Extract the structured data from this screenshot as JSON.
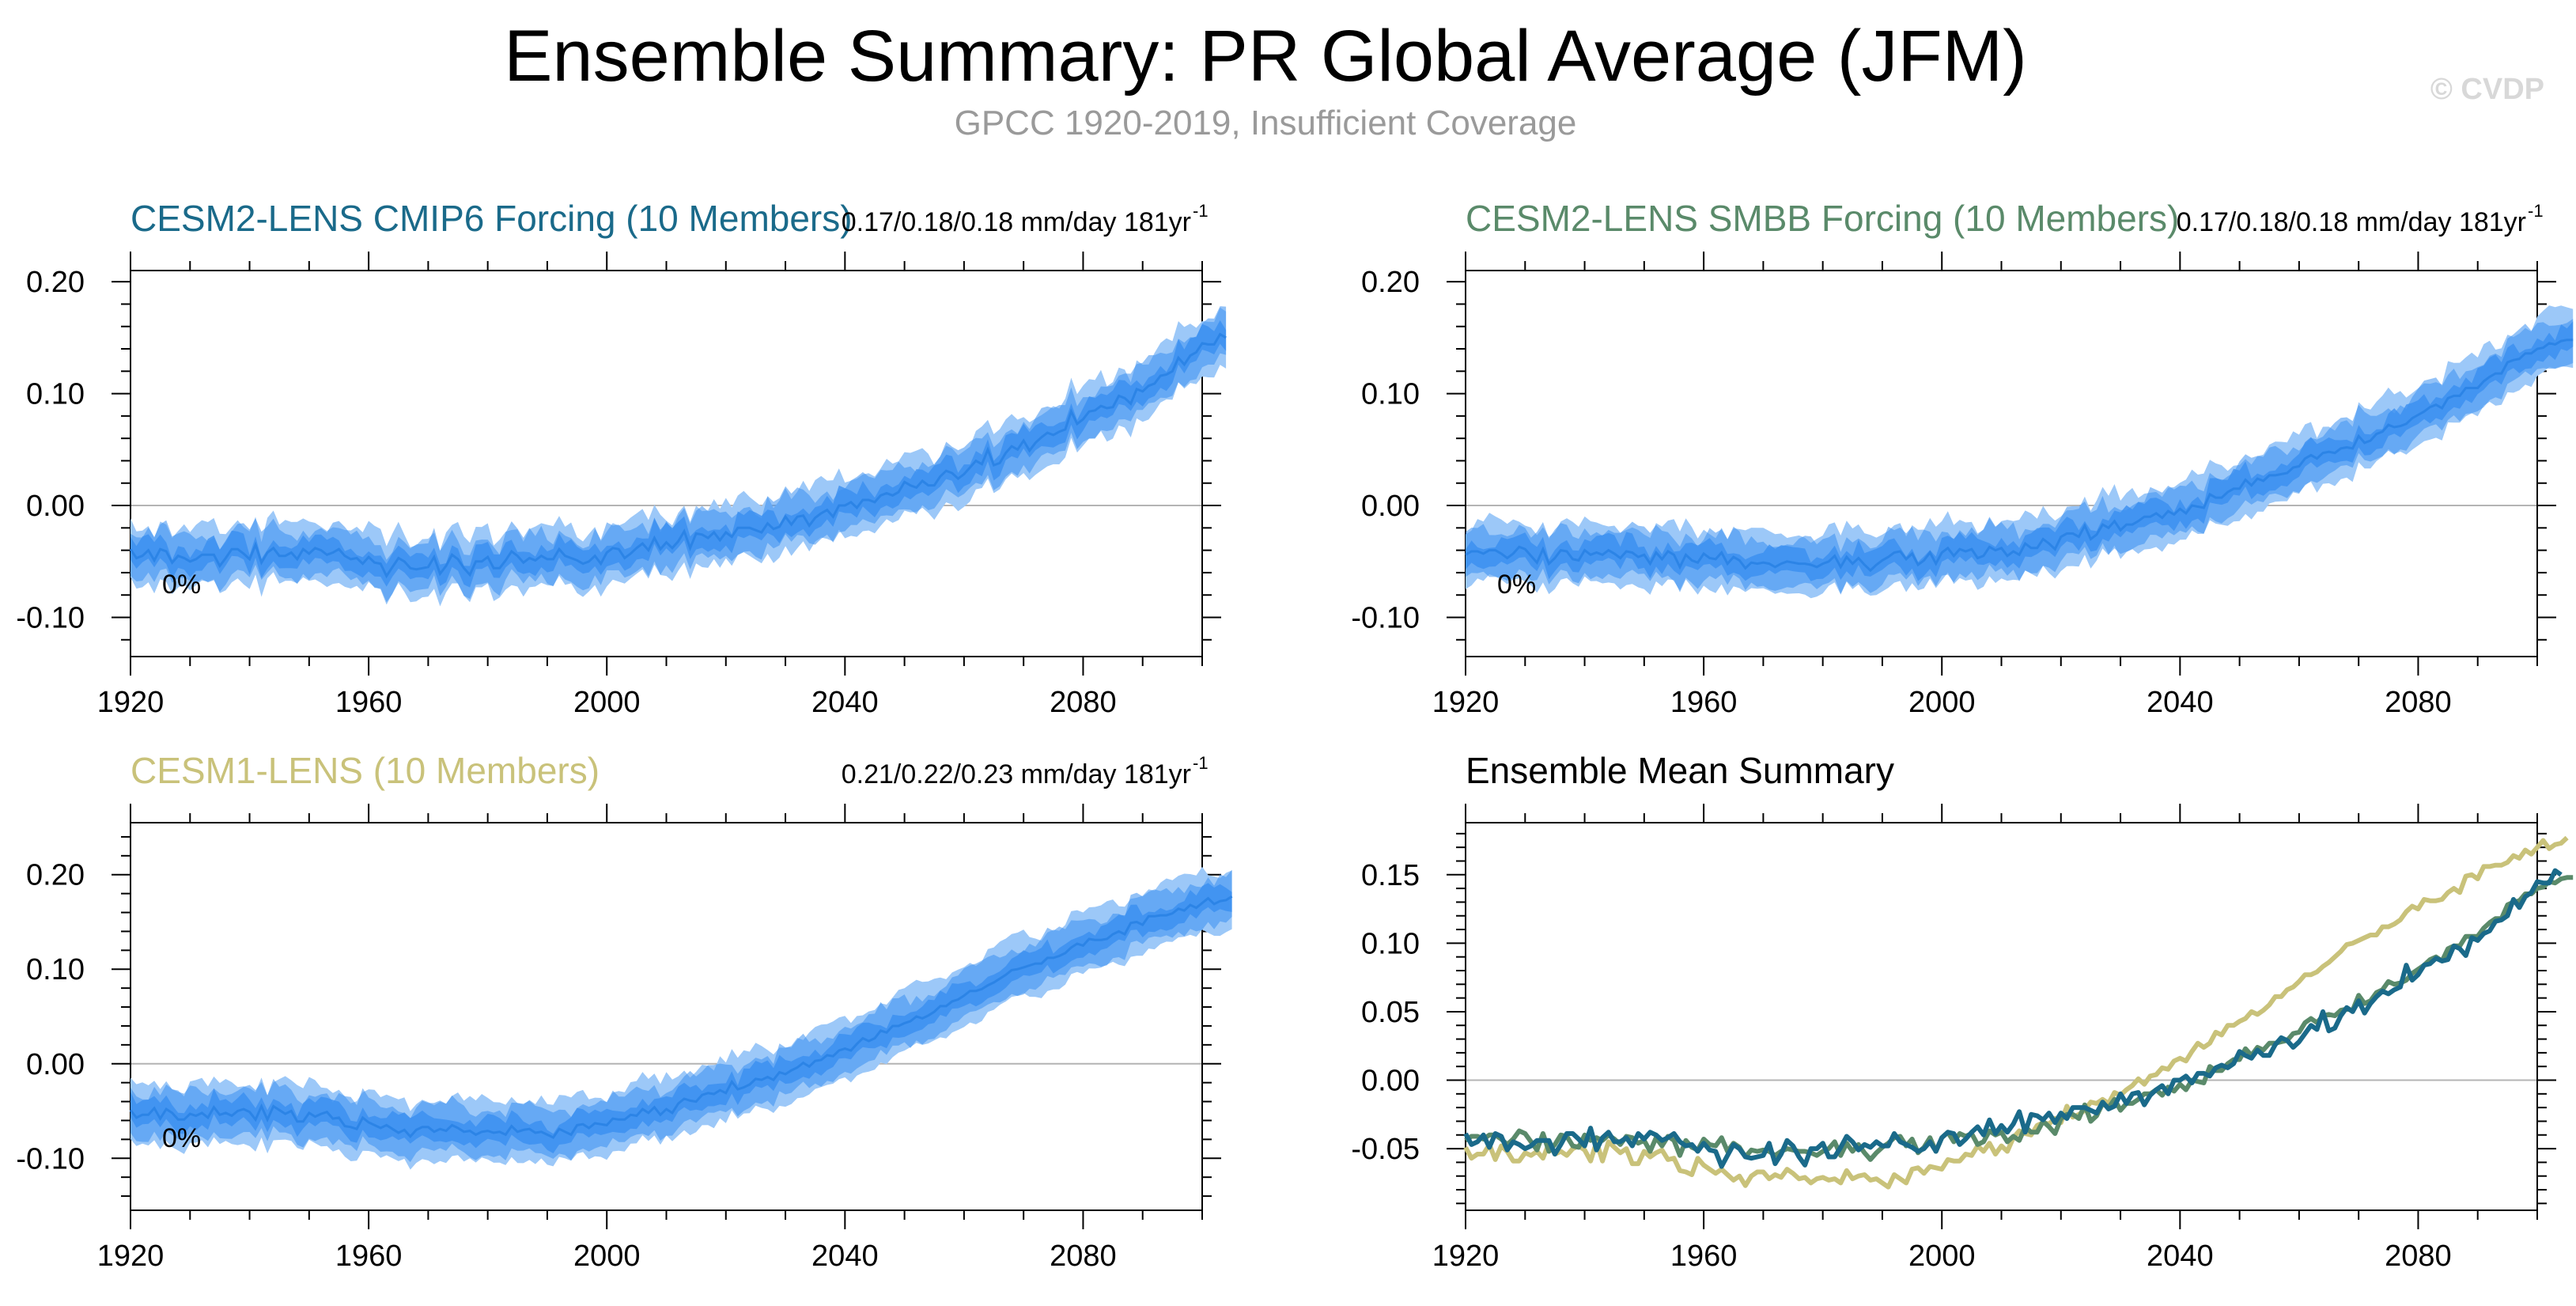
{
  "header": {
    "title": "Ensemble Summary: PR Global Average (JFM)",
    "subtitle": "GPCC 1920-2019, Insufficient Coverage",
    "watermark": "© CVDP"
  },
  "colors": {
    "cesm2_cmip6": "#1a6a8a",
    "cesm2_smbb": "#5a8a6a",
    "cesm1": "#c9c27a",
    "ensemble_mean_line": "#2c84e6",
    "inner_band": "#3a8ff0",
    "outer_band": "#9cc8f8",
    "zero_line": "#b4b4b4"
  },
  "chart_data": [
    {
      "type": "area",
      "title": "CESM2-LENS CMIP6 Forcing (10 Members)",
      "title_color": "#1a6a8a",
      "trend_label": "0.17/0.18/0.18 mm/day 181yr",
      "trend_exponent": "-1",
      "percent_label": "0%",
      "xlim": [
        1920,
        2100
      ],
      "ylim": [
        -0.135,
        0.21
      ],
      "xticks": [
        1920,
        1960,
        2000,
        2040,
        2080
      ],
      "xtick_labels": [
        "1920",
        "1960",
        "2000",
        "2040",
        "2080"
      ],
      "yticks": [
        0.2,
        0.1,
        0.0,
        -0.1
      ],
      "ytick_labels": [
        "0.20",
        "0.10",
        "0.00",
        "-0.10"
      ],
      "series": [
        {
          "name": "ensemble mean",
          "x_start": 1920,
          "x_step": 1,
          "values": [
            -0.039,
            -0.047,
            -0.045,
            -0.04,
            -0.049,
            -0.039,
            -0.041,
            -0.051,
            -0.045,
            -0.047,
            -0.05,
            -0.048,
            -0.044,
            -0.044,
            -0.044,
            -0.054,
            -0.047,
            -0.039,
            -0.039,
            -0.043,
            -0.048,
            -0.035,
            -0.051,
            -0.042,
            -0.038,
            -0.045,
            -0.045,
            -0.042,
            -0.048,
            -0.039,
            -0.043,
            -0.038,
            -0.04,
            -0.044,
            -0.042,
            -0.039,
            -0.045,
            -0.048,
            -0.047,
            -0.052,
            -0.046,
            -0.051,
            -0.052,
            -0.063,
            -0.055,
            -0.047,
            -0.05,
            -0.056,
            -0.057,
            -0.056,
            -0.055,
            -0.046,
            -0.061,
            -0.054,
            -0.044,
            -0.048,
            -0.056,
            -0.062,
            -0.05,
            -0.05,
            -0.046,
            -0.056,
            -0.056,
            -0.049,
            -0.041,
            -0.045,
            -0.051,
            -0.047,
            -0.049,
            -0.045,
            -0.048,
            -0.048,
            -0.039,
            -0.045,
            -0.047,
            -0.049,
            -0.052,
            -0.05,
            -0.045,
            -0.052,
            -0.042,
            -0.038,
            -0.039,
            -0.047,
            -0.043,
            -0.038,
            -0.034,
            -0.04,
            -0.029,
            -0.039,
            -0.033,
            -0.038,
            -0.032,
            -0.023,
            -0.038,
            -0.025,
            -0.026,
            -0.029,
            -0.024,
            -0.031,
            -0.024,
            -0.028,
            -0.02,
            -0.02,
            -0.02,
            -0.022,
            -0.024,
            -0.016,
            -0.021,
            -0.019,
            -0.01,
            -0.017,
            -0.01,
            -0.009,
            -0.018,
            -0.011,
            -0.007,
            -0.004,
            -0.01,
            0.0,
            0.0,
            0.003,
            -0.002,
            0.005,
            0.005,
            0.003,
            0.009,
            0.011,
            0.009,
            0.012,
            0.021,
            0.018,
            0.016,
            0.022,
            0.018,
            0.018,
            0.026,
            0.031,
            0.029,
            0.024,
            0.028,
            0.034,
            0.04,
            0.037,
            0.05,
            0.036,
            0.038,
            0.047,
            0.053,
            0.05,
            0.058,
            0.049,
            0.056,
            0.061,
            0.065,
            0.063,
            0.066,
            0.068,
            0.084,
            0.073,
            0.077,
            0.084,
            0.085,
            0.089,
            0.087,
            0.088,
            0.098,
            0.096,
            0.091,
            0.104,
            0.102,
            0.107,
            0.109,
            0.116,
            0.117,
            0.12,
            0.132,
            0.126,
            0.134,
            0.137,
            0.145,
            0.144,
            0.144,
            0.153,
            0.15
          ]
        },
        {
          "name": "ensemble spread half-width",
          "values": [
            0.01,
            0.02,
            0.026
          ]
        }
      ]
    },
    {
      "type": "area",
      "title": "CESM2-LENS SMBB Forcing (10 Members)",
      "title_color": "#5a8a6a",
      "trend_label": "0.17/0.18/0.18 mm/day 181yr",
      "trend_exponent": "-1",
      "percent_label": "0%",
      "xlim": [
        1920,
        2100
      ],
      "ylim": [
        -0.135,
        0.21
      ],
      "xticks": [
        1920,
        1960,
        2000,
        2040,
        2080
      ],
      "xtick_labels": [
        "1920",
        "1960",
        "2000",
        "2040",
        "2080"
      ],
      "yticks": [
        0.2,
        0.1,
        0.0,
        -0.1
      ],
      "ytick_labels": [
        "0.20",
        "0.10",
        "0.00",
        "-0.10"
      ],
      "series": [
        {
          "name": "ensemble mean",
          "x_start": 1920,
          "x_step": 1,
          "values": [
            -0.044,
            -0.041,
            -0.041,
            -0.043,
            -0.04,
            -0.04,
            -0.043,
            -0.047,
            -0.043,
            -0.037,
            -0.039,
            -0.045,
            -0.051,
            -0.039,
            -0.052,
            -0.047,
            -0.04,
            -0.041,
            -0.048,
            -0.049,
            -0.04,
            -0.044,
            -0.042,
            -0.044,
            -0.04,
            -0.043,
            -0.047,
            -0.041,
            -0.042,
            -0.046,
            -0.044,
            -0.052,
            -0.042,
            -0.048,
            -0.041,
            -0.044,
            -0.055,
            -0.044,
            -0.049,
            -0.051,
            -0.043,
            -0.047,
            -0.048,
            -0.042,
            -0.052,
            -0.046,
            -0.049,
            -0.056,
            -0.051,
            -0.052,
            -0.051,
            -0.052,
            -0.055,
            -0.052,
            -0.05,
            -0.051,
            -0.052,
            -0.052,
            -0.053,
            -0.055,
            -0.052,
            -0.05,
            -0.045,
            -0.055,
            -0.046,
            -0.052,
            -0.047,
            -0.053,
            -0.058,
            -0.053,
            -0.049,
            -0.046,
            -0.042,
            -0.041,
            -0.048,
            -0.043,
            -0.053,
            -0.049,
            -0.042,
            -0.052,
            -0.042,
            -0.038,
            -0.045,
            -0.039,
            -0.041,
            -0.039,
            -0.047,
            -0.045,
            -0.037,
            -0.04,
            -0.038,
            -0.045,
            -0.041,
            -0.044,
            -0.034,
            -0.038,
            -0.038,
            -0.03,
            -0.034,
            -0.039,
            -0.028,
            -0.025,
            -0.025,
            -0.028,
            -0.018,
            -0.03,
            -0.026,
            -0.017,
            -0.02,
            -0.014,
            -0.022,
            -0.017,
            -0.017,
            -0.014,
            -0.01,
            -0.01,
            -0.007,
            -0.011,
            -0.005,
            -0.008,
            -0.003,
            -0.007,
            0.0,
            -0.001,
            -0.002,
            0.01,
            0.007,
            0.007,
            0.012,
            0.015,
            0.015,
            0.023,
            0.018,
            0.024,
            0.022,
            0.027,
            0.027,
            0.028,
            0.029,
            0.034,
            0.035,
            0.042,
            0.045,
            0.042,
            0.047,
            0.048,
            0.047,
            0.051,
            0.052,
            0.051,
            0.062,
            0.056,
            0.058,
            0.064,
            0.066,
            0.072,
            0.07,
            0.071,
            0.073,
            0.078,
            0.081,
            0.084,
            0.088,
            0.09,
            0.087,
            0.096,
            0.098,
            0.098,
            0.105,
            0.105,
            0.105,
            0.111,
            0.115,
            0.118,
            0.118,
            0.128,
            0.13,
            0.131,
            0.136,
            0.136,
            0.14,
            0.141,
            0.145,
            0.144,
            0.147,
            0.148,
            0.148
          ]
        },
        {
          "name": "ensemble spread half-width",
          "values": [
            0.01,
            0.02,
            0.026
          ]
        }
      ]
    },
    {
      "type": "area",
      "title": "CESM1-LENS (10 Members)",
      "title_color": "#c9c27a",
      "trend_label": "0.21/0.22/0.23 mm/day 181yr",
      "trend_exponent": "-1",
      "percent_label": "0%",
      "xlim": [
        1920,
        2100
      ],
      "ylim": [
        -0.155,
        0.255
      ],
      "xticks": [
        1920,
        1960,
        2000,
        2040,
        2080
      ],
      "xtick_labels": [
        "1920",
        "1960",
        "2000",
        "2040",
        "2080"
      ],
      "yticks": [
        0.2,
        0.1,
        0.0,
        -0.1
      ],
      "ytick_labels": [
        "0.20",
        "0.10",
        "0.00",
        "-0.10"
      ],
      "series": [
        {
          "name": "ensemble mean",
          "x_start": 1920,
          "x_step": 1,
          "values": [
            -0.049,
            -0.057,
            -0.054,
            -0.054,
            -0.047,
            -0.058,
            -0.048,
            -0.052,
            -0.059,
            -0.059,
            -0.053,
            -0.055,
            -0.052,
            -0.057,
            -0.046,
            -0.054,
            -0.052,
            -0.055,
            -0.05,
            -0.048,
            -0.051,
            -0.059,
            -0.045,
            -0.059,
            -0.045,
            -0.049,
            -0.053,
            -0.05,
            -0.061,
            -0.061,
            -0.052,
            -0.056,
            -0.053,
            -0.051,
            -0.058,
            -0.057,
            -0.066,
            -0.067,
            -0.069,
            -0.057,
            -0.062,
            -0.065,
            -0.068,
            -0.065,
            -0.069,
            -0.073,
            -0.07,
            -0.077,
            -0.07,
            -0.067,
            -0.067,
            -0.072,
            -0.069,
            -0.071,
            -0.065,
            -0.068,
            -0.072,
            -0.071,
            -0.075,
            -0.072,
            -0.071,
            -0.073,
            -0.072,
            -0.075,
            -0.066,
            -0.072,
            -0.07,
            -0.069,
            -0.073,
            -0.072,
            -0.075,
            -0.078,
            -0.069,
            -0.072,
            -0.075,
            -0.065,
            -0.064,
            -0.068,
            -0.063,
            -0.064,
            -0.065,
            -0.058,
            -0.059,
            -0.059,
            -0.054,
            -0.055,
            -0.048,
            -0.052,
            -0.046,
            -0.054,
            -0.048,
            -0.052,
            -0.042,
            -0.037,
            -0.039,
            -0.04,
            -0.033,
            -0.031,
            -0.032,
            -0.028,
            -0.031,
            -0.019,
            -0.027,
            -0.025,
            -0.022,
            -0.016,
            -0.017,
            -0.014,
            -0.017,
            -0.009,
            -0.011,
            -0.007,
            -0.004,
            0.001,
            -0.003,
            0.003,
            0.004,
            0.009,
            0.008,
            0.014,
            0.016,
            0.014,
            0.021,
            0.027,
            0.024,
            0.027,
            0.035,
            0.033,
            0.04,
            0.04,
            0.043,
            0.045,
            0.05,
            0.048,
            0.051,
            0.055,
            0.061,
            0.061,
            0.066,
            0.068,
            0.072,
            0.077,
            0.077,
            0.079,
            0.083,
            0.086,
            0.09,
            0.094,
            0.099,
            0.1,
            0.102,
            0.104,
            0.106,
            0.106,
            0.112,
            0.112,
            0.114,
            0.117,
            0.123,
            0.127,
            0.125,
            0.132,
            0.131,
            0.131,
            0.132,
            0.137,
            0.14,
            0.137,
            0.149,
            0.15,
            0.147,
            0.156,
            0.156,
            0.157,
            0.157,
            0.159,
            0.164,
            0.162,
            0.168,
            0.165,
            0.17,
            0.175,
            0.169,
            0.172,
            0.173,
            0.177
          ]
        },
        {
          "name": "ensemble spread half-width",
          "values": [
            0.012,
            0.024,
            0.032
          ]
        }
      ]
    },
    {
      "type": "line",
      "title": "Ensemble Mean Summary",
      "title_color": "#000000",
      "xlim": [
        1920,
        2100
      ],
      "ylim": [
        -0.095,
        0.188
      ],
      "xticks": [
        1920,
        1960,
        2000,
        2040,
        2080
      ],
      "xtick_labels": [
        "1920",
        "1960",
        "2000",
        "2040",
        "2080"
      ],
      "yticks": [
        0.15,
        0.1,
        0.05,
        0.0,
        -0.05
      ],
      "ytick_labels": [
        "0.15",
        "0.10",
        "0.05",
        "0.00",
        "-0.05"
      ],
      "series": [
        {
          "name": "CESM1-LENS",
          "source": "panel 3",
          "color": "#c9c27a"
        },
        {
          "name": "CESM2-LENS SMBB Forcing",
          "source": "panel 2",
          "color": "#5a8a6a"
        },
        {
          "name": "CESM2-LENS CMIP6 Forcing",
          "source": "panel 1",
          "color": "#1a6a8a"
        }
      ]
    }
  ]
}
